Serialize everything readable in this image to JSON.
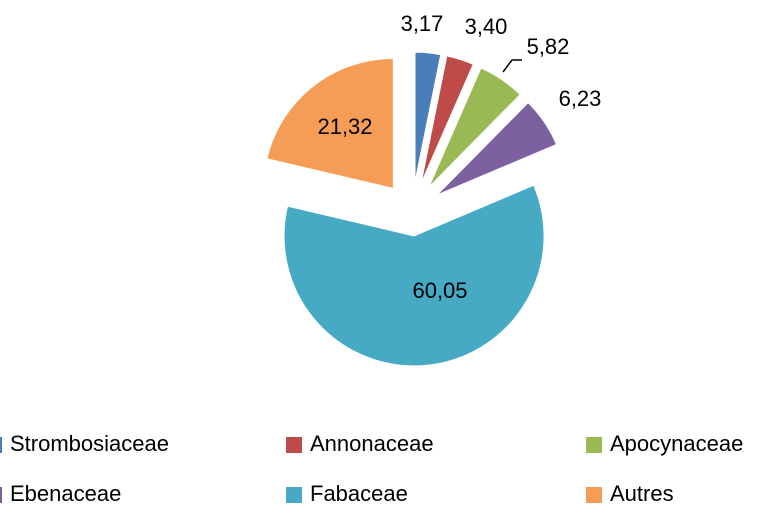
{
  "chart_data": {
    "type": "pie",
    "categories": [
      "Strombosiaceae",
      "Annonaceae",
      "Apocynaceae",
      "Ebenaceae",
      "Fabaceae",
      "Autres"
    ],
    "values": [
      3.17,
      3.4,
      5.82,
      6.23,
      60.05,
      21.32
    ],
    "value_labels": [
      "3,17",
      "3,40",
      "5,82",
      "6,23",
      "60,05",
      "21,32"
    ],
    "colors": [
      "#4a7ebb",
      "#be4b48",
      "#98b954",
      "#7d60a0",
      "#46aac5",
      "#f59d56"
    ]
  }
}
